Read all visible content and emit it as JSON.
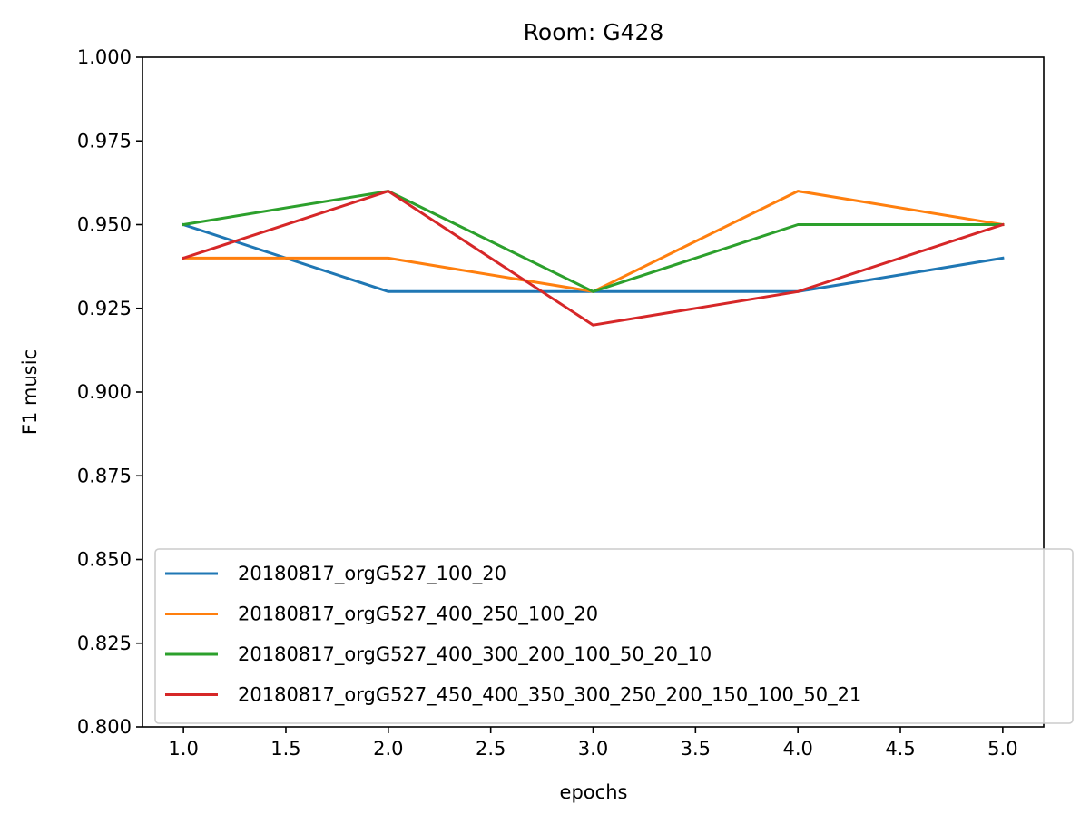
{
  "chart_data": {
    "type": "line",
    "title": "Room: G428",
    "xlabel": "epochs",
    "ylabel": "F1 music",
    "xlim": [
      0.8,
      5.2
    ],
    "ylim": [
      0.8,
      1.0
    ],
    "xticks": [
      "1.0",
      "1.5",
      "2.0",
      "2.5",
      "3.0",
      "3.5",
      "4.0",
      "4.5",
      "5.0"
    ],
    "yticks": [
      "0.800",
      "0.825",
      "0.850",
      "0.875",
      "0.900",
      "0.925",
      "0.950",
      "0.975",
      "1.000"
    ],
    "grid": false,
    "legend_position": "lower-right",
    "x": [
      1,
      2,
      3,
      4,
      5
    ],
    "series": [
      {
        "name": "20180817_orgG527_100_20",
        "color": "#1f77b4",
        "values": [
          0.95,
          0.93,
          0.93,
          0.93,
          0.94
        ]
      },
      {
        "name": "20180817_orgG527_400_250_100_20",
        "color": "#ff7f0e",
        "values": [
          0.94,
          0.94,
          0.93,
          0.96,
          0.95
        ]
      },
      {
        "name": "20180817_orgG527_400_300_200_100_50_20_10",
        "color": "#2ca02c",
        "values": [
          0.95,
          0.96,
          0.93,
          0.95,
          0.95
        ]
      },
      {
        "name": "20180817_orgG527_450_400_350_300_250_200_150_100_50_21",
        "color": "#d62728",
        "values": [
          0.94,
          0.96,
          0.92,
          0.93,
          0.95
        ]
      }
    ]
  }
}
